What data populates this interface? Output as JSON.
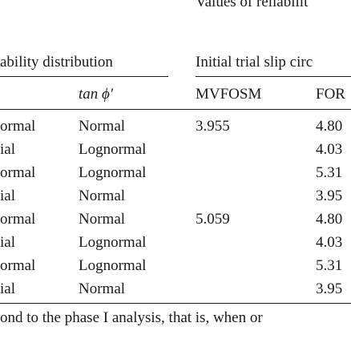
{
  "header": {
    "values_title": "Values of reliabilit",
    "prob_dist_title": "ability distribution",
    "trial_title": "Initial trial slip circ"
  },
  "columns": {
    "tan_phi": "tan ϕ′",
    "mvfosm": "MVFOSM",
    "form": "FOR"
  },
  "rows": [
    {
      "dist_a": "ormal",
      "dist_tan": "Normal",
      "mvfosm": "3.955",
      "form": "4.80"
    },
    {
      "dist_a": "ial",
      "dist_tan": "Lognormal",
      "mvfosm": "",
      "form": "4.03"
    },
    {
      "dist_a": "ormal",
      "dist_tan": "Lognormal",
      "mvfosm": "",
      "form": "5.31"
    },
    {
      "dist_a": "ial",
      "dist_tan": "Normal",
      "mvfosm": "",
      "form": "3.95"
    },
    {
      "dist_a": "ormal",
      "dist_tan": "Normal",
      "mvfosm": "5.059",
      "form": "4.80"
    },
    {
      "dist_a": "ial",
      "dist_tan": "Lognormal",
      "mvfosm": "",
      "form": "4.03"
    },
    {
      "dist_a": "ormal",
      "dist_tan": "Lognormal",
      "mvfosm": "",
      "form": "5.31"
    },
    {
      "dist_a": "ial",
      "dist_tan": "Normal",
      "mvfosm": "",
      "form": "3.95"
    }
  ],
  "footnote": "ond to the phase I analysis, that is, when or"
}
